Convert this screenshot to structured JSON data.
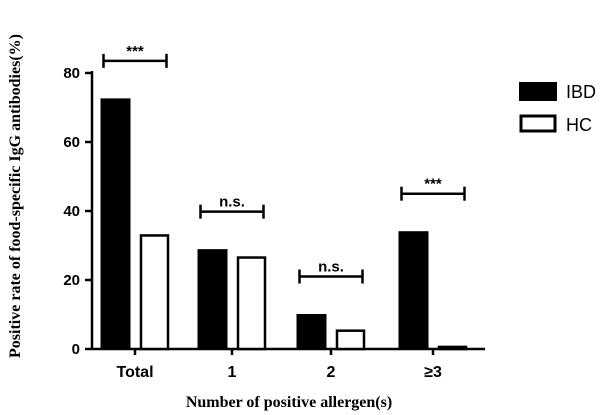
{
  "chart_data": {
    "type": "bar",
    "title": "",
    "xlabel": "Number of positive allergen(s)",
    "ylabel": "Positive rate of food-specific IgG antibodies(%)",
    "ylim": [
      0,
      80
    ],
    "yticks": [
      0,
      20,
      40,
      60,
      80
    ],
    "categories": [
      "Total",
      "1",
      "2",
      "≥3"
    ],
    "series": [
      {
        "name": "IBD",
        "values": [
          72.5,
          28.8,
          10.0,
          34.0
        ],
        "color": "#000000",
        "fill": "solid"
      },
      {
        "name": "HC",
        "values": [
          33.2,
          26.8,
          5.6,
          0.9
        ],
        "color": "#000000",
        "fill": "white"
      }
    ],
    "significance": [
      "***",
      "n.s.",
      "n.s.",
      "***"
    ],
    "legend_position": "top-right",
    "grid": false
  }
}
